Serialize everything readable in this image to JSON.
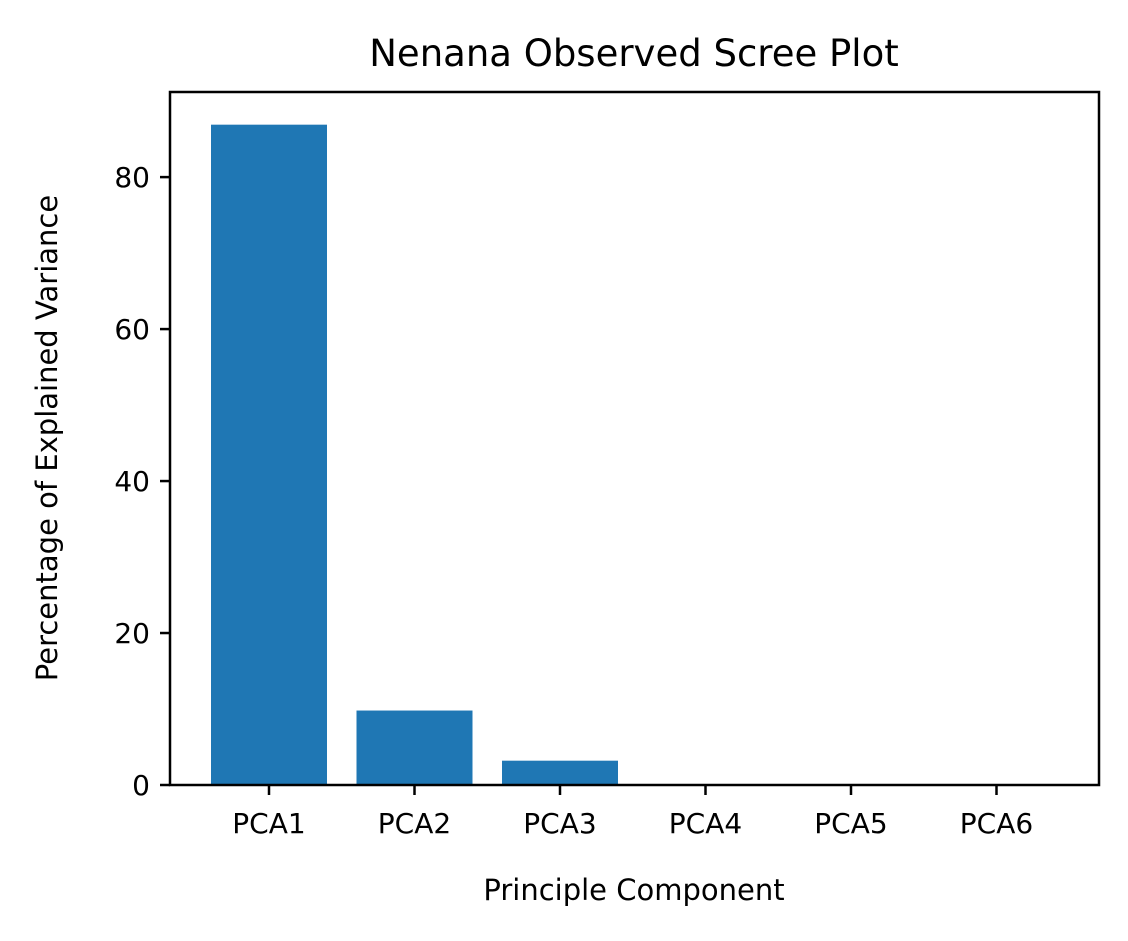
{
  "chart_data": {
    "type": "bar",
    "title": "Nenana Observed Scree Plot",
    "xlabel": "Principle Component",
    "ylabel": "Percentage of Explained Variance",
    "categories": [
      "PCA1",
      "PCA2",
      "PCA3",
      "PCA4",
      "PCA5",
      "PCA6"
    ],
    "values": [
      86.9,
      9.8,
      3.2,
      0.1,
      0.0,
      0.0
    ],
    "ylim": [
      0,
      91.2
    ],
    "yticks": [
      0,
      20,
      40,
      60,
      80
    ],
    "grid": false,
    "legend": "none",
    "bar_color": "#1f77b4"
  }
}
